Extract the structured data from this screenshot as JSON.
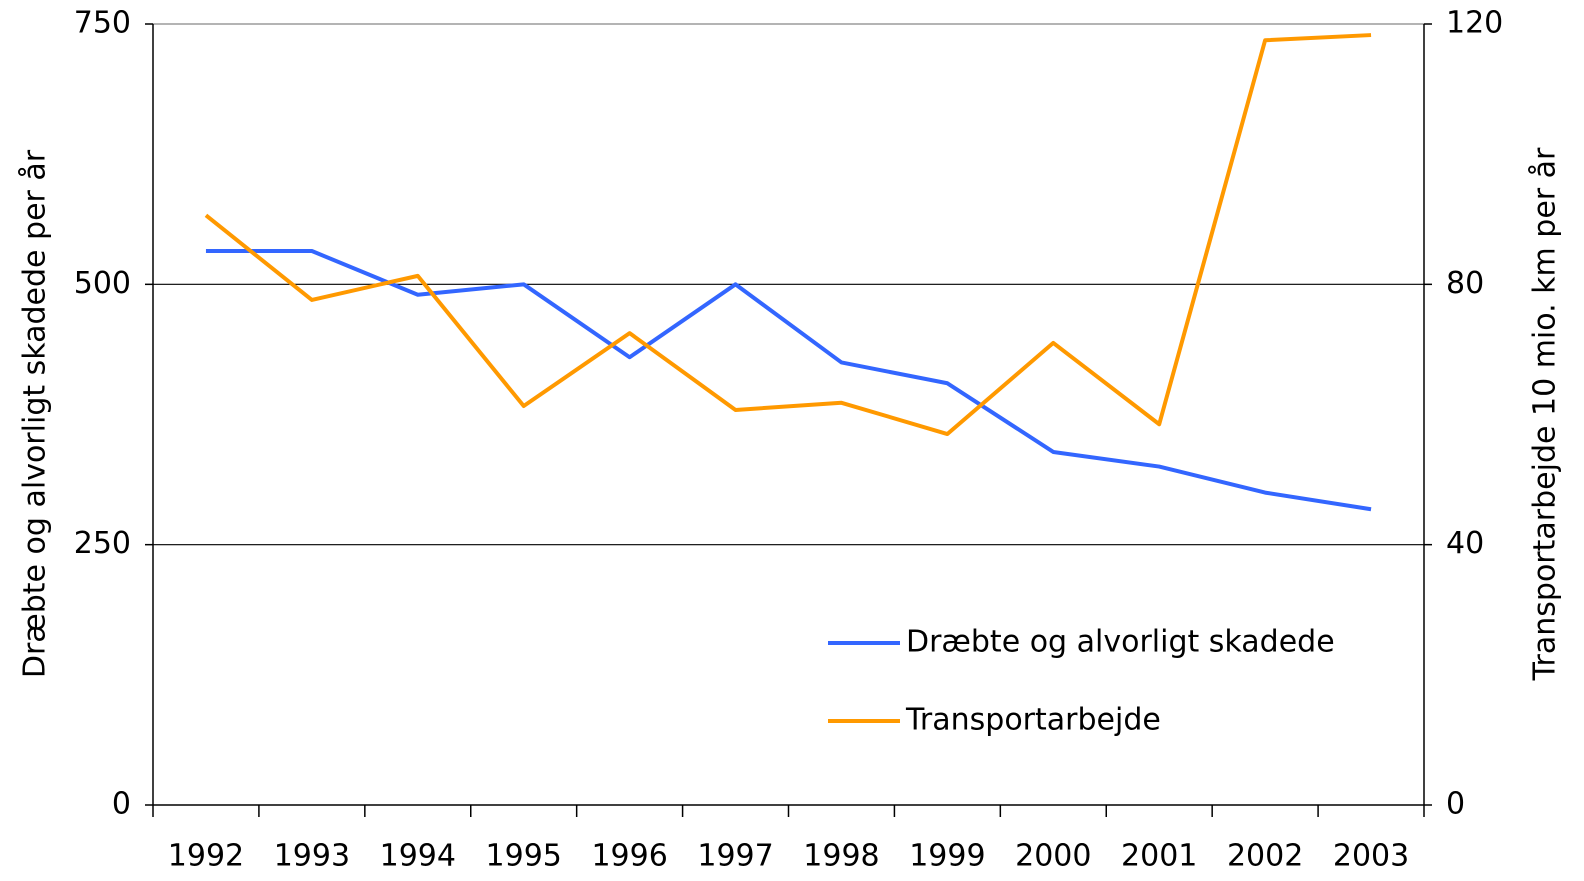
{
  "chart_data": {
    "type": "line",
    "y_label": "Dræbte og alvorligt skadede per år",
    "y2_label": "Transportarbejde 10 mio. km per år",
    "categories": [
      "1992",
      "1993",
      "1994",
      "1995",
      "1996",
      "1997",
      "1998",
      "1999",
      "2000",
      "2001",
      "2002",
      "2003"
    ],
    "series": [
      {
        "name": "Dræbte og alvorligt skadede",
        "color": "#3366ff",
        "values": [
          532,
          532,
          490,
          500,
          430,
          500,
          425,
          405,
          339,
          325,
          300,
          284
        ]
      },
      {
        "name": "Transportarbejde",
        "color": "#ff9900",
        "axis": "y2",
        "values": [
          90.6,
          77.6,
          81.3,
          61.3,
          72.5,
          60.7,
          61.8,
          57.0,
          71.0,
          58.5,
          117.5,
          118.3
        ]
      }
    ],
    "ylim": [
      0,
      750
    ],
    "yticks": [
      0,
      250,
      500,
      750
    ],
    "y2lim": [
      0,
      120
    ],
    "y2ticks": [
      0,
      40,
      80,
      120
    ],
    "grid": true,
    "legend": "lower right"
  }
}
